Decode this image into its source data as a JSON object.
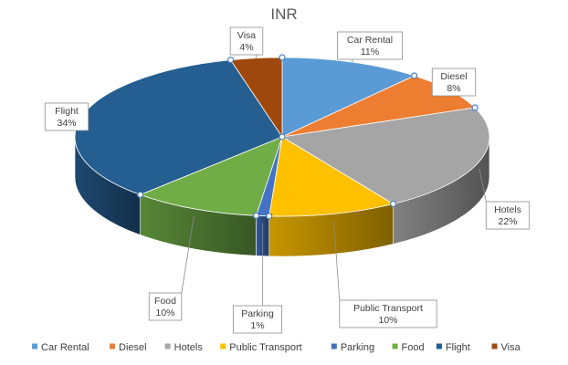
{
  "chart_data": {
    "type": "pie",
    "title": "INR",
    "categories": [
      "Car Rental",
      "Diesel",
      "Hotels",
      "Public Transport",
      "Parking",
      "Food",
      "Flight",
      "Visa"
    ],
    "values": [
      11,
      8,
      22,
      10,
      1,
      10,
      34,
      4
    ],
    "value_labels": [
      "11%",
      "8%",
      "22%",
      "10%",
      "1%",
      "10%",
      "34%",
      "4%"
    ],
    "colors": [
      "#5b9bd5",
      "#ed7d31",
      "#a5a5a5",
      "#ffc000",
      "#4472c4",
      "#70ad47",
      "#255e91",
      "#9e480e"
    ],
    "legend_position": "bottom",
    "style": "3d-pie"
  }
}
